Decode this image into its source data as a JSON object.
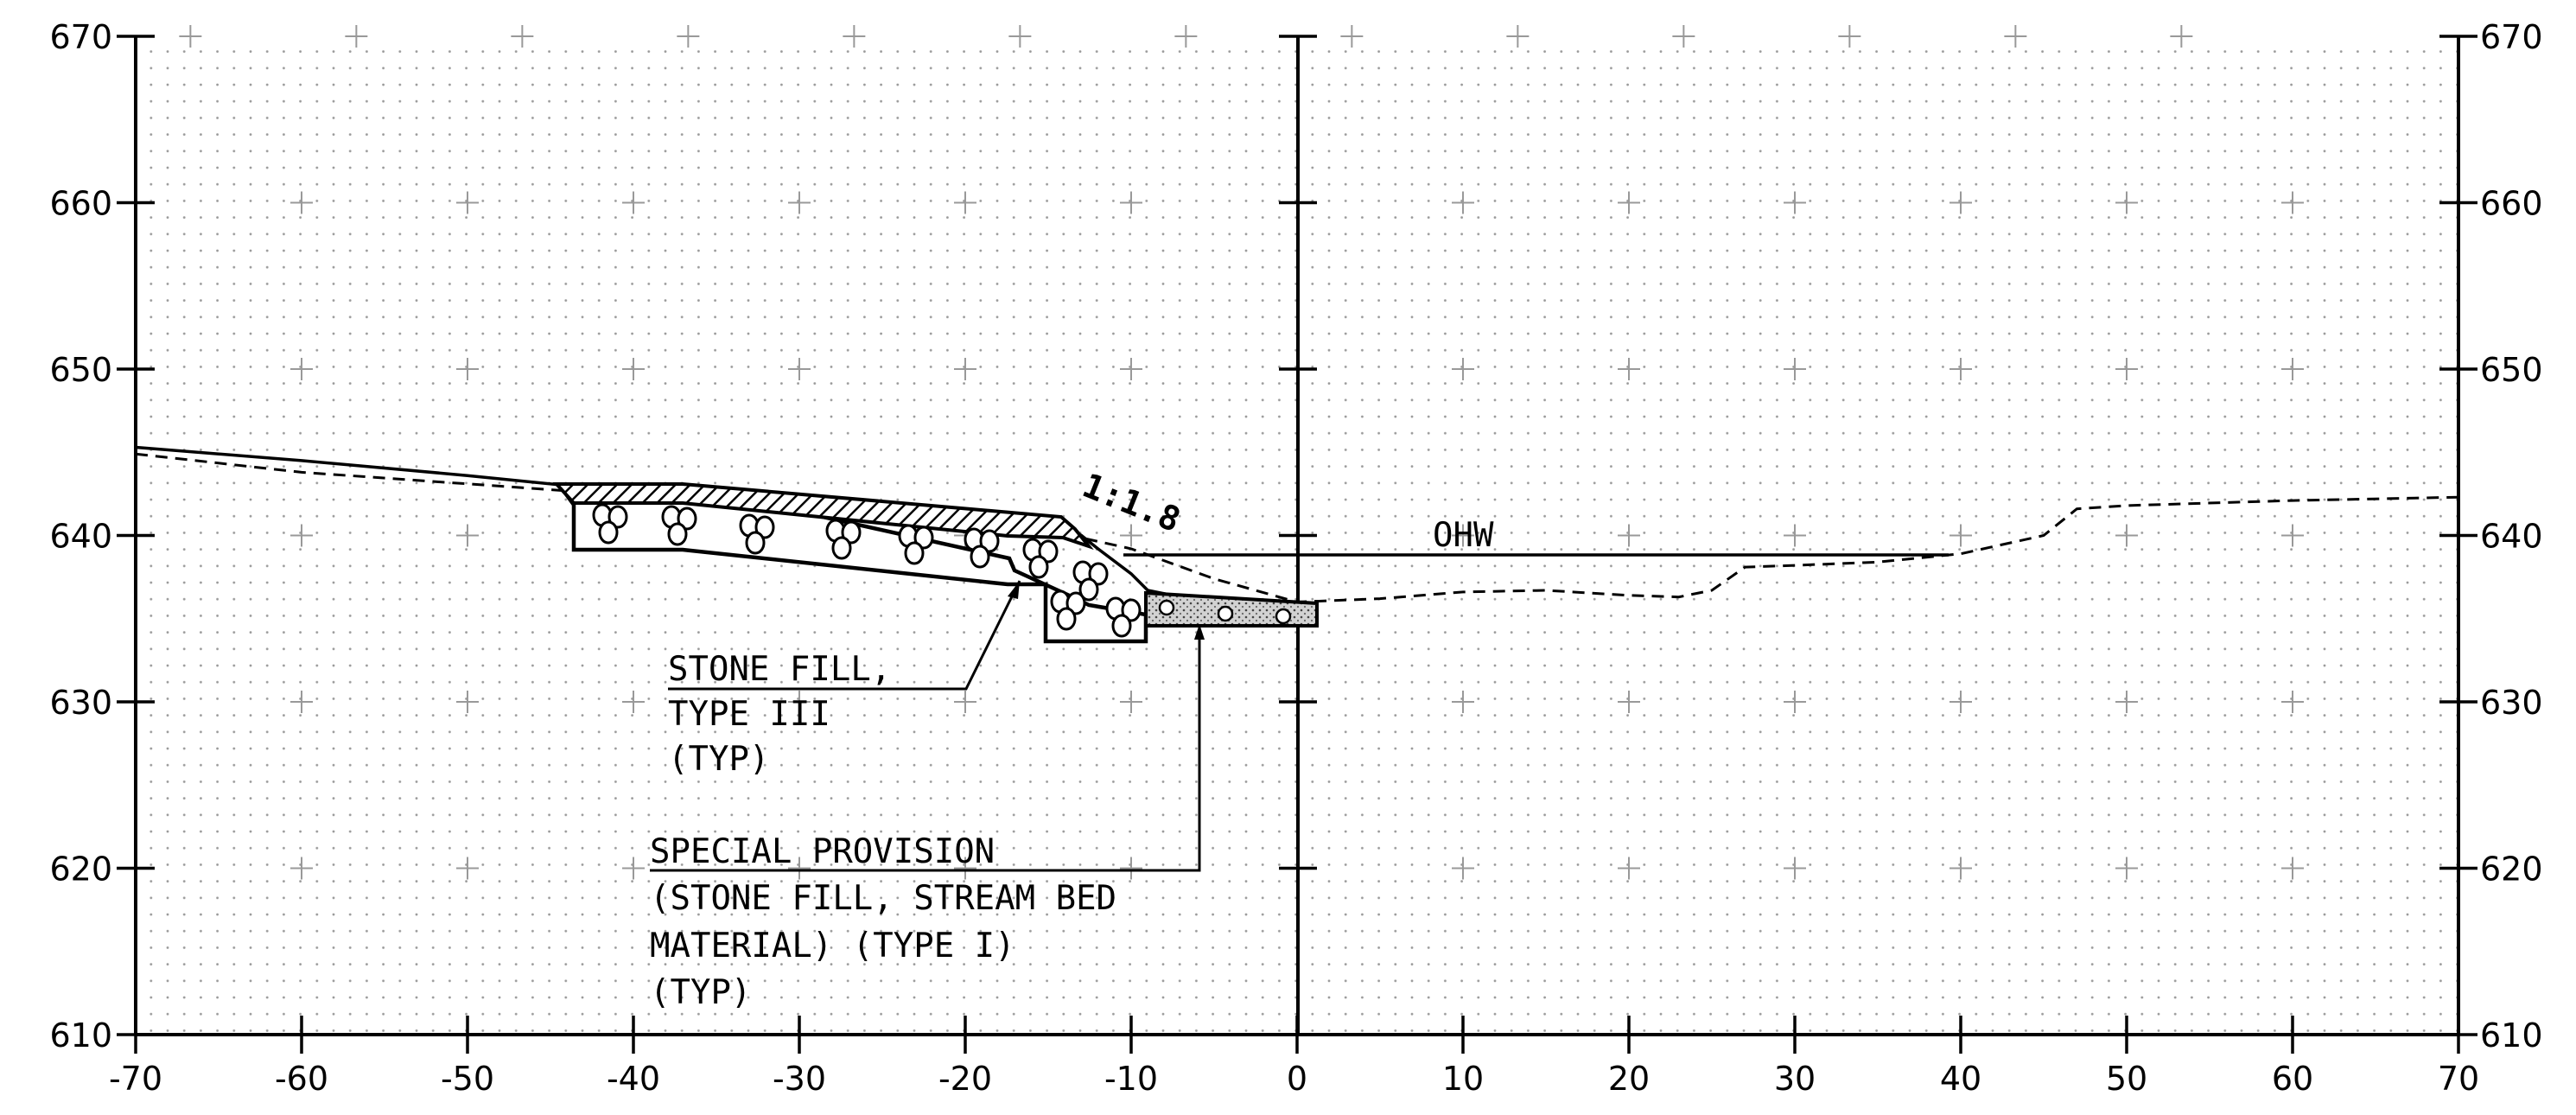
{
  "x_axis": {
    "min": -70,
    "max": 70,
    "step": 10,
    "labels": [
      "-70",
      "-60",
      "-50",
      "-40",
      "-30",
      "-20",
      "-10",
      "0",
      "10",
      "20",
      "30",
      "40",
      "50",
      "60",
      "70"
    ]
  },
  "y_axis": {
    "min": 610,
    "max": 670,
    "step": 10,
    "labels": [
      "670",
      "660",
      "650",
      "640",
      "630",
      "620",
      "610"
    ]
  },
  "notes": {
    "slope": "1:1.8",
    "ohw": "OHW",
    "stone_fill": [
      "STONE FILL,",
      "TYPE III",
      "(TYP)"
    ],
    "special_provision": [
      "SPECIAL PROVISION",
      "(STONE FILL, STREAM BED",
      "MATERIAL) (TYPE I)",
      "(TYP)"
    ]
  },
  "profiles": {
    "existing_ground": [
      [
        -70,
        644.9
      ],
      [
        -60,
        643.8
      ],
      [
        -50,
        643.1
      ],
      [
        -40,
        642.4
      ],
      [
        -30,
        641.6
      ],
      [
        -20,
        640.8
      ],
      [
        -15,
        640.3
      ],
      [
        -10,
        639.2
      ],
      [
        -5,
        637.4
      ],
      [
        0,
        636.0
      ],
      [
        5,
        636.2
      ],
      [
        10,
        636.6
      ],
      [
        15,
        636.7
      ],
      [
        20,
        636.4
      ],
      [
        23,
        636.3
      ],
      [
        25,
        636.7
      ],
      [
        27,
        638.1
      ],
      [
        30,
        638.2
      ],
      [
        35,
        638.4
      ],
      [
        40,
        638.9
      ],
      [
        45,
        640.0
      ],
      [
        47,
        641.6
      ],
      [
        50,
        641.8
      ],
      [
        60,
        642.1
      ],
      [
        70,
        642.3
      ]
    ],
    "finished_grade": [
      [
        -70,
        645.3
      ],
      [
        -60,
        644.5
      ],
      [
        -50,
        643.6
      ],
      [
        -44,
        643.0
      ],
      [
        -37,
        642.9
      ],
      [
        -30,
        642.2
      ],
      [
        -20,
        641.2
      ],
      [
        -14,
        640.6
      ],
      [
        -13,
        640.0
      ],
      [
        -12,
        639.2
      ],
      [
        -10,
        637.7
      ],
      [
        -9,
        636.7
      ],
      [
        -7,
        636.3
      ],
      [
        -3,
        636.0
      ],
      [
        1,
        635.8
      ]
    ]
  },
  "ohw_elevation": 638.8
}
